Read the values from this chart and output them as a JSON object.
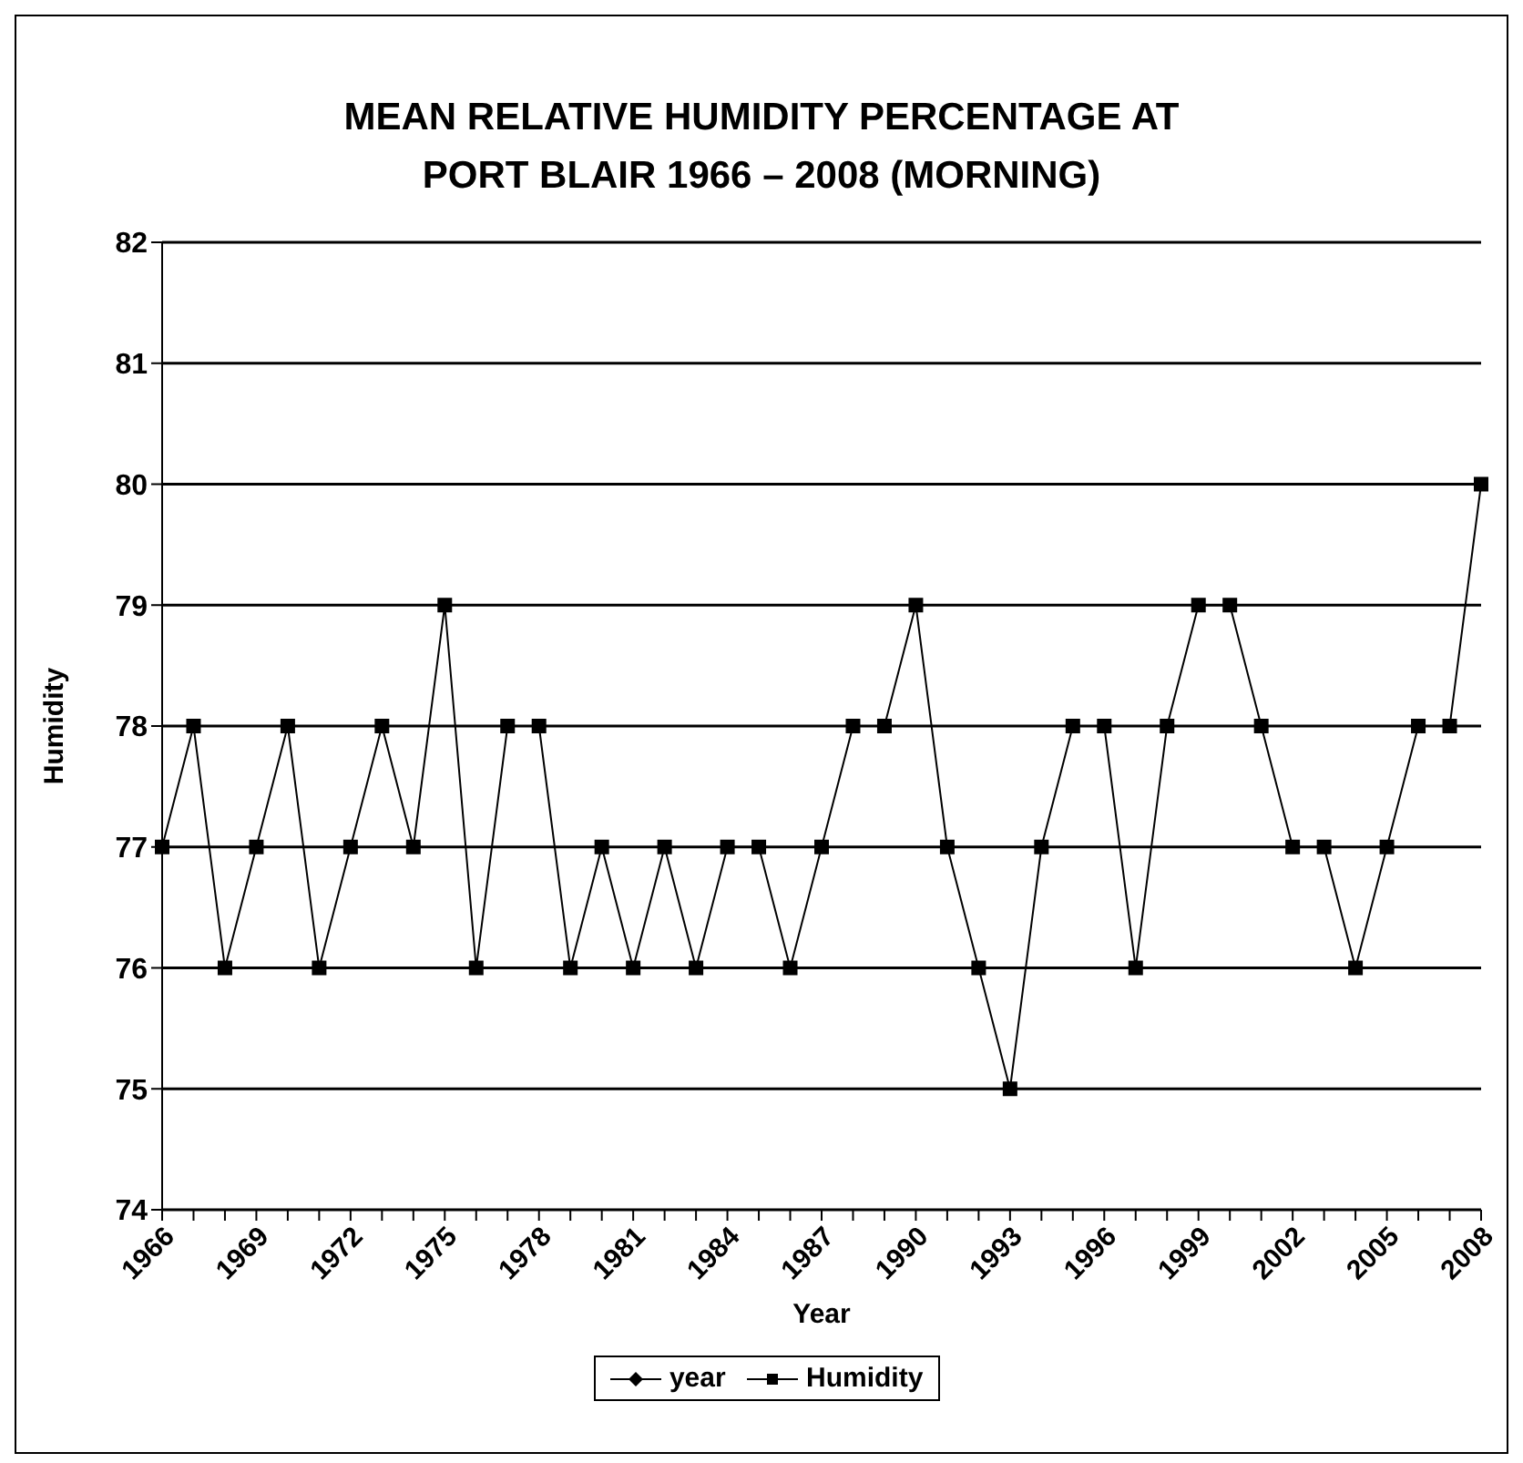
{
  "chart_data": {
    "type": "line",
    "title": "MEAN RELATIVE HUMIDITY PERCENTAGE AT PORT BLAIR 1966 – 2008 (MORNING)",
    "xlabel": "Year",
    "ylabel": "Humidity",
    "categories": [
      "1966",
      null,
      null,
      "1969",
      null,
      null,
      "1972",
      null,
      null,
      "1975",
      null,
      null,
      "1978",
      null,
      null,
      "1981",
      null,
      null,
      "1984",
      null,
      null,
      "1987",
      null,
      null,
      "1990",
      null,
      null,
      "1993",
      null,
      null,
      "1996",
      null,
      null,
      "1999",
      null,
      null,
      "2002",
      null,
      null,
      "2005",
      null,
      null,
      "2008"
    ],
    "series": [
      {
        "name": "year",
        "color": "#000000",
        "marker": "diamond",
        "values": [
          null,
          null,
          null,
          null,
          null,
          null,
          null,
          null,
          null,
          null,
          null,
          null,
          null,
          null,
          null,
          null,
          null,
          null,
          null,
          null,
          null,
          null,
          null,
          null,
          null,
          null,
          null,
          null,
          null,
          null,
          null,
          null,
          null,
          null,
          null,
          null,
          null,
          null,
          null,
          null,
          null,
          null,
          null
        ]
      },
      {
        "name": "Humidity",
        "color": "#000000",
        "marker": "square",
        "values": [
          77,
          78,
          76,
          77,
          78,
          76,
          77,
          78,
          77,
          79,
          76,
          78,
          78,
          76,
          77,
          76,
          77,
          76,
          77,
          77,
          76,
          77,
          78,
          78,
          79,
          77,
          76,
          75,
          77,
          78,
          78,
          76,
          78,
          79,
          79,
          78,
          77,
          77,
          76,
          77,
          78,
          78,
          80
        ]
      }
    ],
    "ylim": [
      74,
      82
    ],
    "yticks": [
      74,
      75,
      76,
      77,
      78,
      79,
      80,
      81,
      82
    ],
    "grid": "y",
    "legend": "bottom",
    "line_style": "solid"
  }
}
